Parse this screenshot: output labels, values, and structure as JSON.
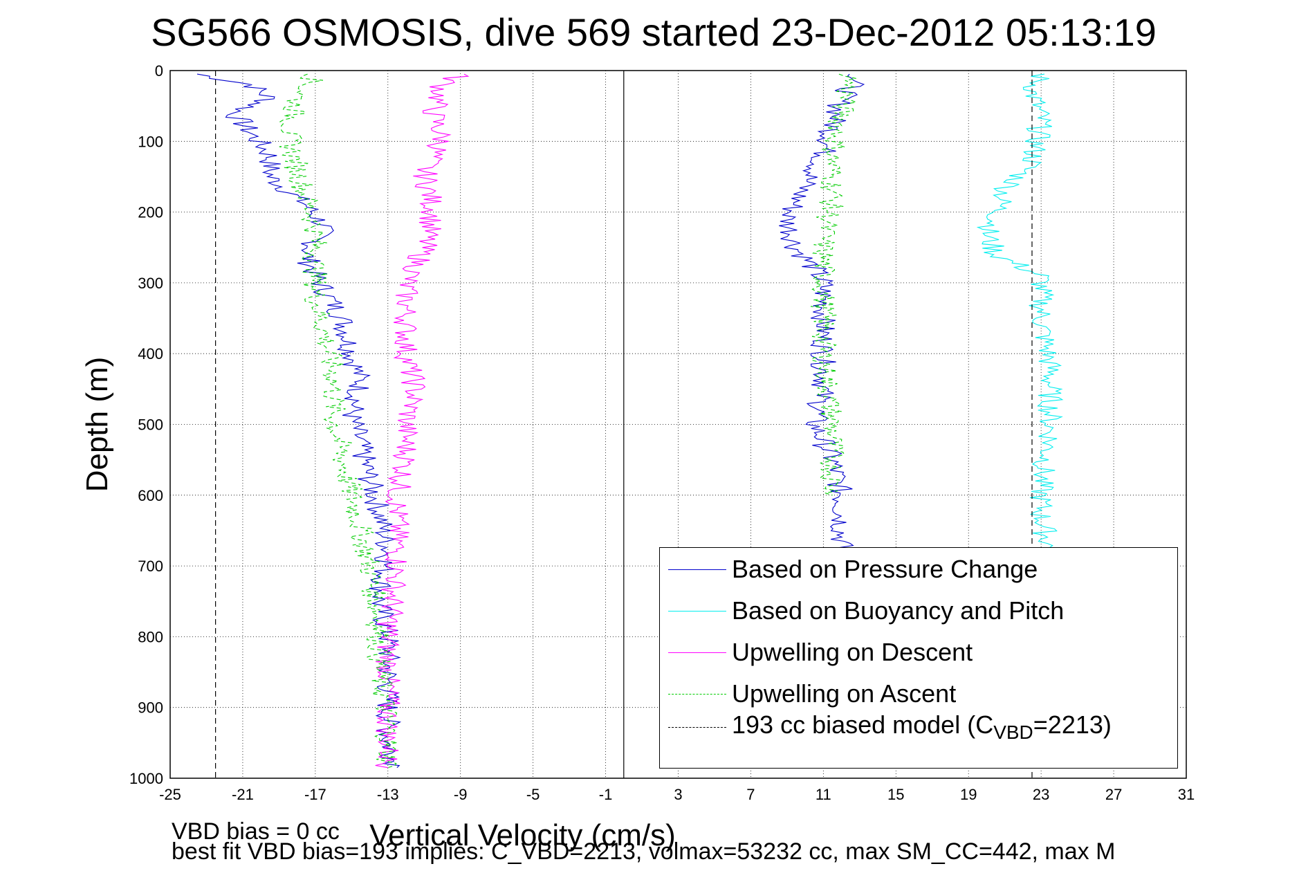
{
  "chart_data": {
    "type": "line",
    "title": "SG566 OSMOSIS, dive 569 started 23-Dec-2012 05:13:19",
    "xlabel": "Vertical Velocity (cm/s)",
    "ylabel": "Depth (m)",
    "xlim": [
      -25,
      31
    ],
    "ylim": [
      1000,
      0
    ],
    "y_reversed": true,
    "grid": true,
    "xticks": [
      "-25",
      "-21",
      "-17",
      "-13",
      "-9",
      "-5",
      "-1",
      "3",
      "7",
      "11",
      "15",
      "19",
      "23",
      "27",
      "31"
    ],
    "yticks": [
      "0",
      "100",
      "200",
      "300",
      "400",
      "500",
      "600",
      "700",
      "800",
      "900",
      "1000"
    ],
    "legend_position": "bottom-right",
    "series": [
      {
        "name": "Based on Pressure Change",
        "color": "#0000cc",
        "style": "solid",
        "segments": [
          {
            "x": [
              -23.5,
              -20.5,
              -19.5,
              -21.5,
              -20.5,
              -19.5,
              -19.5,
              -18.5,
              -17.5,
              -16.5,
              -17.5,
              -17.0,
              -16.5,
              -15.5,
              -15.0,
              -14.5,
              -15.0,
              -14.5,
              -14.0,
              -13.5,
              -13.0,
              -13.5,
              -13.0,
              -13.0,
              -13.0,
              -13.0,
              -12.5
            ],
            "y": [
              5,
              20,
              40,
              60,
              90,
              120,
              150,
              170,
              190,
              220,
              260,
              290,
              310,
              350,
              400,
              440,
              490,
              530,
              580,
              620,
              680,
              750,
              800,
              850,
              900,
              950,
              985
            ]
          },
          {
            "x": [
              13.0,
              12.0,
              11.5,
              11.0,
              10.0,
              9.0,
              9.5,
              10.5,
              11.0,
              11.0,
              11.0,
              11.0,
              10.5,
              11.5,
              12.0,
              12.0
            ],
            "y": [
              5,
              40,
              80,
              120,
              160,
              210,
              250,
              280,
              300,
              350,
              400,
              450,
              500,
              550,
              600,
              680
            ]
          }
        ]
      },
      {
        "name": "Based on Buoyancy and Pitch",
        "color": "#00eeee",
        "style": "solid",
        "segments": [
          {
            "x": [
              23.0,
              22.5,
              23.0,
              22.5,
              21.0,
              20.5,
              20.0,
              20.5,
              23.0,
              23.0,
              23.5,
              23.5,
              23.5,
              23.0,
              23.0,
              23.5
            ],
            "y": [
              5,
              30,
              70,
              130,
              170,
              210,
              230,
              260,
              290,
              350,
              420,
              480,
              520,
              580,
              630,
              680
            ]
          }
        ]
      },
      {
        "name": "Upwelling on Descent",
        "color": "#ff00ff",
        "style": "solid",
        "segments": [
          {
            "x": [
              -9.0,
              -10.0,
              -10.5,
              -10.0,
              -11.0,
              -10.5,
              -11.0,
              -11.5,
              -12.0,
              -12.0,
              -12.0,
              -11.5,
              -12.0,
              -12.0,
              -12.5,
              -12.5,
              -12.5,
              -13.0,
              -13.0,
              -13.0,
              -13.0
            ],
            "y": [
              5,
              20,
              60,
              100,
              140,
              200,
              250,
              280,
              300,
              350,
              400,
              450,
              500,
              550,
              600,
              650,
              700,
              800,
              850,
              900,
              985
            ]
          }
        ]
      },
      {
        "name": "Upwelling on Ascent",
        "color": "#00cc00",
        "style": "dashed",
        "segments": [
          {
            "x": [
              -17.0,
              -18.0,
              -18.5,
              -18.0,
              -17.5,
              -17.0,
              -17.0,
              -17.0,
              -16.5,
              -16.0,
              -16.0,
              -15.5,
              -15.0,
              -14.5,
              -14.0,
              -13.5,
              -13.5,
              -13.0,
              -13.0
            ],
            "y": [
              5,
              40,
              90,
              140,
              180,
              220,
              270,
              320,
              370,
              430,
              490,
              550,
              600,
              650,
              700,
              780,
              850,
              920,
              985
            ]
          },
          {
            "x": [
              12.5,
              12.0,
              11.5,
              11.5,
              11.0,
              11.0,
              11.0,
              11.5,
              11.5
            ],
            "y": [
              5,
              60,
              120,
              180,
              240,
              300,
              400,
              500,
              600
            ]
          }
        ]
      },
      {
        "name": "193 cc biased model (C_VBD=2213)",
        "color": "#000000",
        "style": "dashed",
        "segments": [
          {
            "x": [
              -22.5,
              -22.5
            ],
            "y": [
              0,
              1000
            ]
          },
          {
            "x": [
              22.5,
              22.5
            ],
            "y": [
              0,
              1000
            ]
          }
        ]
      }
    ],
    "reference_lines": [
      {
        "x": 0,
        "style": "solid",
        "color": "#000000"
      }
    ]
  },
  "legend": {
    "items": [
      {
        "label": "Based on Pressure Change",
        "color": "#0000cc",
        "style": "solid"
      },
      {
        "label": "Based on Buoyancy and Pitch",
        "color": "#00eeee",
        "style": "solid"
      },
      {
        "label": "Upwelling on Descent",
        "color": "#ff00ff",
        "style": "solid"
      },
      {
        "label": "Upwelling on Ascent",
        "color": "#00cc00",
        "style": "dashed"
      }
    ],
    "model_label_pre": "193 cc biased model (C",
    "model_label_sub": "VBD",
    "model_label_post": "=2213)"
  },
  "footnotes": {
    "vbd_bias": "VBD bias = 0 cc",
    "best_fit": "best fit VBD bias=193 implies: C_VBD=2213, volmax=53232 cc, max SM_CC=442, max M"
  }
}
